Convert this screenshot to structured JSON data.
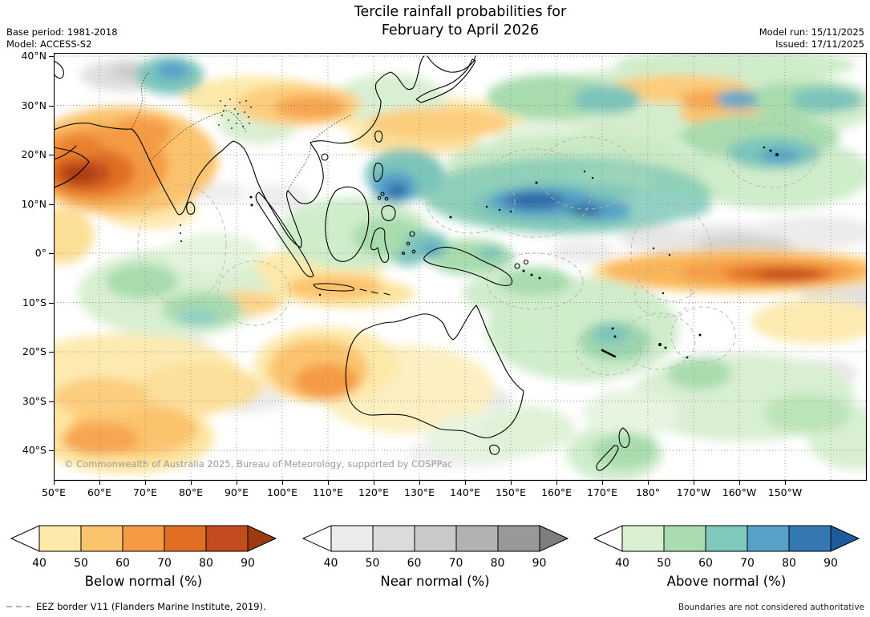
{
  "header": {
    "title_line1": "Tercile rainfall probabilities for",
    "title_line2": "February to April 2026",
    "base_period": "Base period: 1981-2018",
    "model": "Model: ACCESS-S2",
    "model_run": "Model run: 15/11/2025",
    "issued": "Issued: 17/11/2025"
  },
  "map": {
    "lat_labels": [
      "40°N",
      "30°N",
      "20°N",
      "10°N",
      "0°",
      "10°S",
      "20°S",
      "30°S",
      "40°S"
    ],
    "lon_labels": [
      "50°E",
      "60°E",
      "70°E",
      "80°E",
      "90°E",
      "100°E",
      "110°E",
      "120°E",
      "130°E",
      "140°E",
      "150°E",
      "160°E",
      "170°E",
      "180°",
      "170°W",
      "160°W",
      "150°W"
    ],
    "copyright": "© Commonwealth of Australia 2025, Bureau of Meteorology, supported by COSPPac"
  },
  "legends": [
    {
      "label": "Below normal (%)",
      "ticks": [
        "40",
        "50",
        "60",
        "70",
        "80",
        "90"
      ],
      "left_arrow_color": "#ffffff",
      "segment_colors": [
        "#fde9a9",
        "#fcc36d",
        "#f59b45",
        "#e06f23",
        "#c24c1d"
      ],
      "right_arrow_color": "#9e3a12"
    },
    {
      "label": "Near normal (%)",
      "ticks": [
        "40",
        "50",
        "60",
        "70",
        "80",
        "90"
      ],
      "left_arrow_color": "#ffffff",
      "segment_colors": [
        "#ebebeb",
        "#dbdbdb",
        "#c9c9c9",
        "#b2b2b2",
        "#989898"
      ],
      "right_arrow_color": "#7e7e7e"
    },
    {
      "label": "Above normal (%)",
      "ticks": [
        "40",
        "50",
        "60",
        "70",
        "80",
        "90"
      ],
      "left_arrow_color": "#ffffff",
      "segment_colors": [
        "#d9f0d1",
        "#a9dcb0",
        "#7ec8be",
        "#55a1c8",
        "#3378b2"
      ],
      "right_arrow_color": "#1f5a9e"
    }
  ],
  "footer": {
    "eez_text": "EEZ border V11 (Flanders Marine Institute, 2019).",
    "boundaries_note": "Boundaries are not considered authoritative"
  }
}
